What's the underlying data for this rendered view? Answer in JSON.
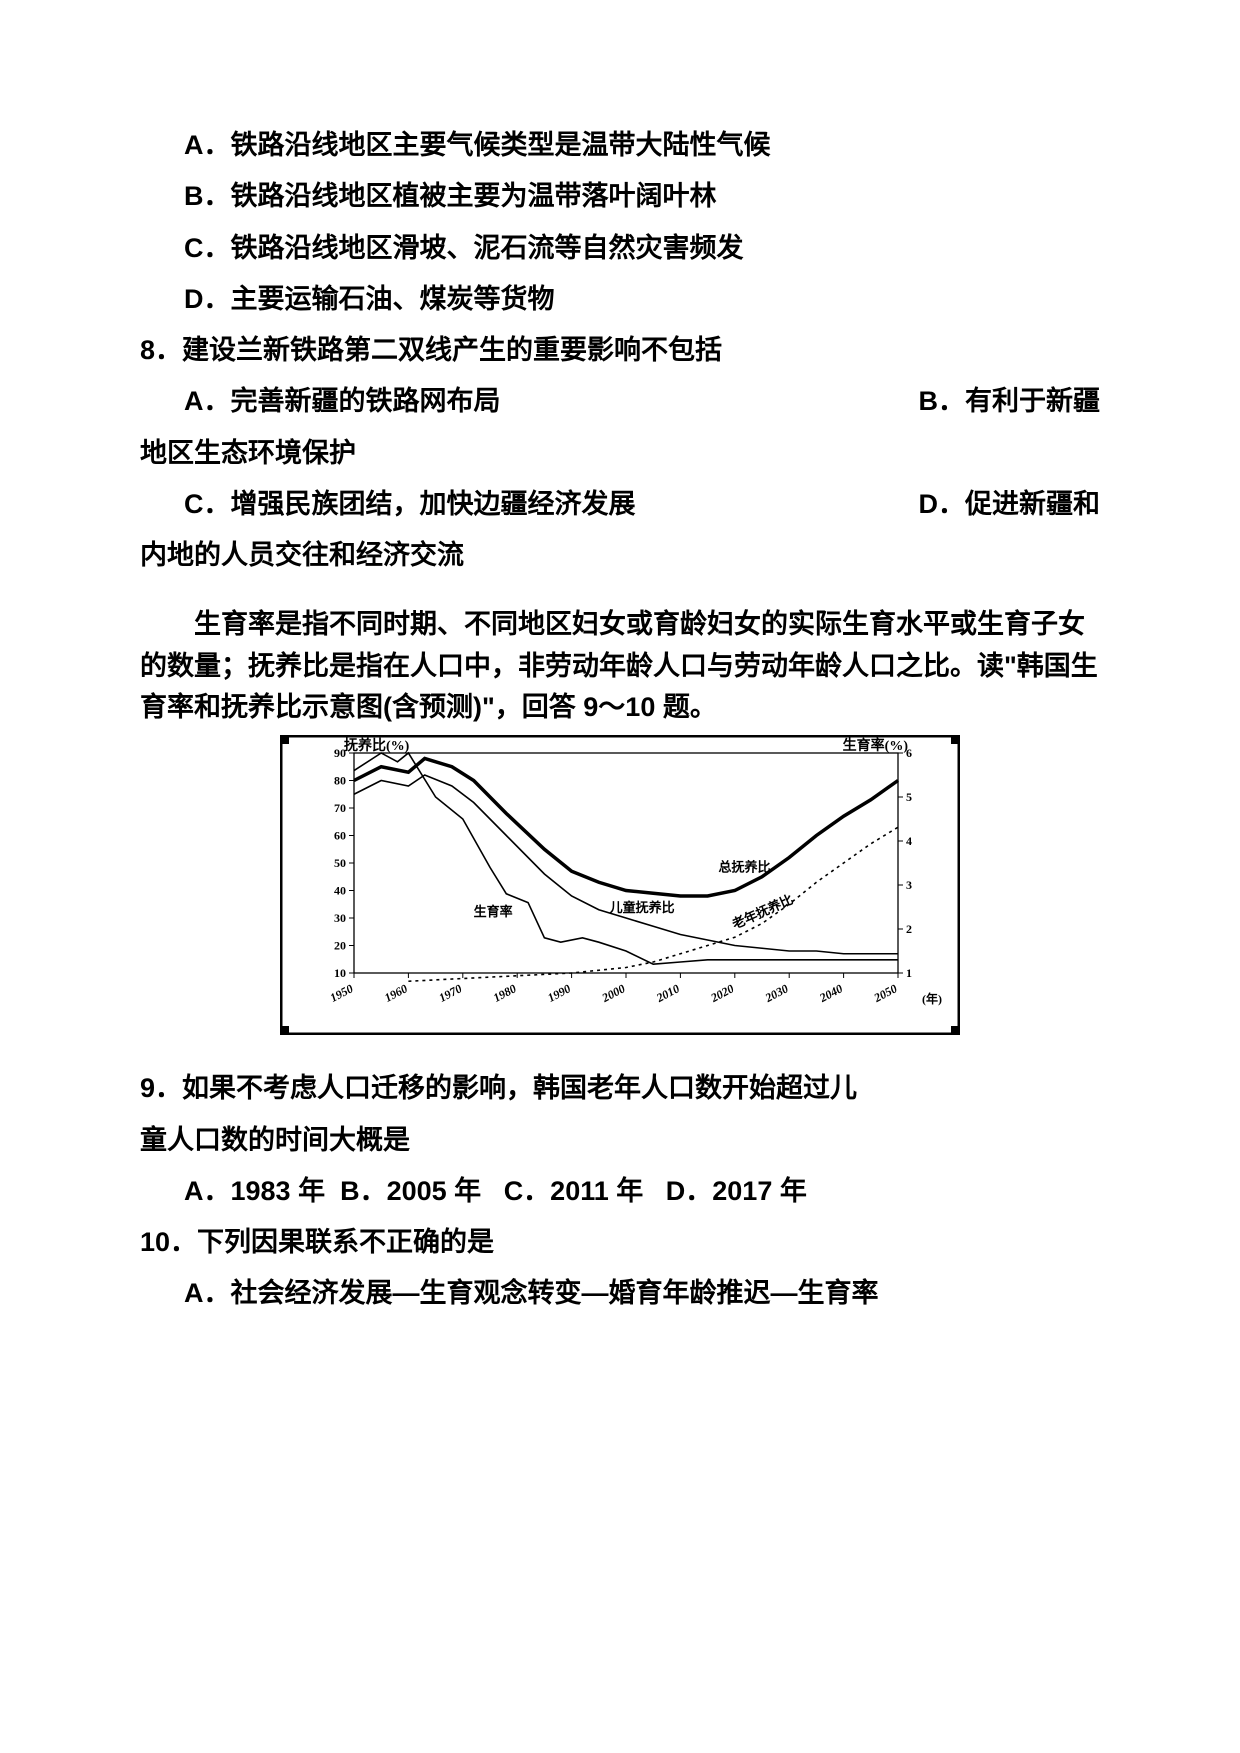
{
  "q7_options": {
    "A": "A．铁路沿线地区主要气候类型是温带大陆性气候",
    "B": "B．铁路沿线地区植被主要为温带落叶阔叶林",
    "C": "C．铁路沿线地区滑坡、泥石流等自然灾害频发",
    "D": "D．主要运输石油、煤炭等货物"
  },
  "q8": {
    "stem": "8．建设兰新铁路第二双线产生的重要影响不包括",
    "A": "A．完善新疆的铁路网布局",
    "B": "B．有利于新疆",
    "B_cont": "地区生态环境保护",
    "C": "C．增强民族团结，加快边疆经济发展",
    "D": "D．促进新疆和",
    "D_cont": "内地的人员交往和经济交流"
  },
  "passage": "生育率是指不同时期、不同地区妇女或育龄妇女的实际生育水平或生育子女的数量；抚养比是指在人口中，非劳动年龄人口与劳动年龄人口之比。读\"韩国生育率和抚养比示意图(含预测)\"，回答 9～10 题。",
  "chart": {
    "type": "line",
    "background_color": "#ffffff",
    "frame_color": "#000000",
    "axis_color": "#000000",
    "title_left": "抚养比(%)",
    "title_right": "生育率(%)",
    "x_label_right": "(年)",
    "title_fontsize": 14,
    "tick_fontsize": 12,
    "left_y": {
      "min": 10,
      "max": 90,
      "step": 10
    },
    "right_y": {
      "min": 1,
      "max": 6,
      "step": 1
    },
    "x": {
      "min": 1950,
      "max": 2050,
      "step": 10
    },
    "series": {
      "total_dependency": {
        "label": "总抚养比",
        "axis": "left",
        "color": "#000000",
        "width": 3.5,
        "dash": "none",
        "points": [
          [
            1950,
            80
          ],
          [
            1955,
            85
          ],
          [
            1960,
            83
          ],
          [
            1963,
            88
          ],
          [
            1968,
            85
          ],
          [
            1972,
            80
          ],
          [
            1978,
            68
          ],
          [
            1985,
            55
          ],
          [
            1990,
            47
          ],
          [
            1995,
            43
          ],
          [
            2000,
            40
          ],
          [
            2005,
            39
          ],
          [
            2010,
            38
          ],
          [
            2015,
            38
          ],
          [
            2020,
            40
          ],
          [
            2025,
            45
          ],
          [
            2030,
            52
          ],
          [
            2035,
            60
          ],
          [
            2040,
            67
          ],
          [
            2045,
            73
          ],
          [
            2050,
            80
          ]
        ]
      },
      "child_dependency": {
        "label": "儿童抚养比",
        "axis": "left",
        "color": "#000000",
        "width": 1.6,
        "dash": "none",
        "points": [
          [
            1950,
            75
          ],
          [
            1955,
            80
          ],
          [
            1960,
            78
          ],
          [
            1963,
            82
          ],
          [
            1968,
            78
          ],
          [
            1972,
            72
          ],
          [
            1978,
            60
          ],
          [
            1985,
            46
          ],
          [
            1990,
            38
          ],
          [
            1995,
            33
          ],
          [
            2000,
            30
          ],
          [
            2005,
            27
          ],
          [
            2010,
            24
          ],
          [
            2015,
            22
          ],
          [
            2020,
            20
          ],
          [
            2025,
            19
          ],
          [
            2030,
            18
          ],
          [
            2035,
            18
          ],
          [
            2040,
            17
          ],
          [
            2045,
            17
          ],
          [
            2050,
            17
          ]
        ]
      },
      "elderly_dependency": {
        "label": "老年抚养比",
        "axis": "left",
        "color": "#000000",
        "width": 1.6,
        "dash": "3 4",
        "points": [
          [
            1960,
            7
          ],
          [
            1970,
            8
          ],
          [
            1980,
            9
          ],
          [
            1990,
            10
          ],
          [
            2000,
            12
          ],
          [
            2005,
            14
          ],
          [
            2010,
            17
          ],
          [
            2015,
            20
          ],
          [
            2020,
            23
          ],
          [
            2025,
            28
          ],
          [
            2030,
            35
          ],
          [
            2035,
            43
          ],
          [
            2040,
            50
          ],
          [
            2045,
            57
          ],
          [
            2050,
            63
          ]
        ]
      },
      "fertility": {
        "label": "生育率",
        "axis": "right",
        "color": "#000000",
        "width": 1.6,
        "dash": "none",
        "points": [
          [
            1950,
            5.6
          ],
          [
            1955,
            6.0
          ],
          [
            1958,
            5.8
          ],
          [
            1960,
            6.0
          ],
          [
            1965,
            5.0
          ],
          [
            1970,
            4.5
          ],
          [
            1975,
            3.4
          ],
          [
            1978,
            2.8
          ],
          [
            1982,
            2.6
          ],
          [
            1985,
            1.8
          ],
          [
            1988,
            1.7
          ],
          [
            1992,
            1.8
          ],
          [
            1995,
            1.7
          ],
          [
            2000,
            1.5
          ],
          [
            2005,
            1.2
          ],
          [
            2010,
            1.25
          ],
          [
            2015,
            1.3
          ],
          [
            2020,
            1.3
          ],
          [
            2030,
            1.3
          ],
          [
            2040,
            1.3
          ],
          [
            2050,
            1.3
          ]
        ]
      }
    },
    "annotations": {
      "fertility_label": "生育率",
      "child_label": "儿童抚养比",
      "total_label": "总抚养比",
      "elderly_label": "老年抚养比"
    }
  },
  "q9": {
    "stem": "9．如果不考虑人口迁移的影响，韩国老年人口数开始超过儿",
    "stem_cont": "童人口数的时间大概是",
    "A": "A．1983 年",
    "B": "B．2005 年",
    "C": "C．2011 年",
    "D": "D．2017 年"
  },
  "q10": {
    "stem": "10．下列因果联系不正确的是",
    "A": "A．社会经济发展―生育观念转变―婚育年龄推迟―生育率"
  }
}
